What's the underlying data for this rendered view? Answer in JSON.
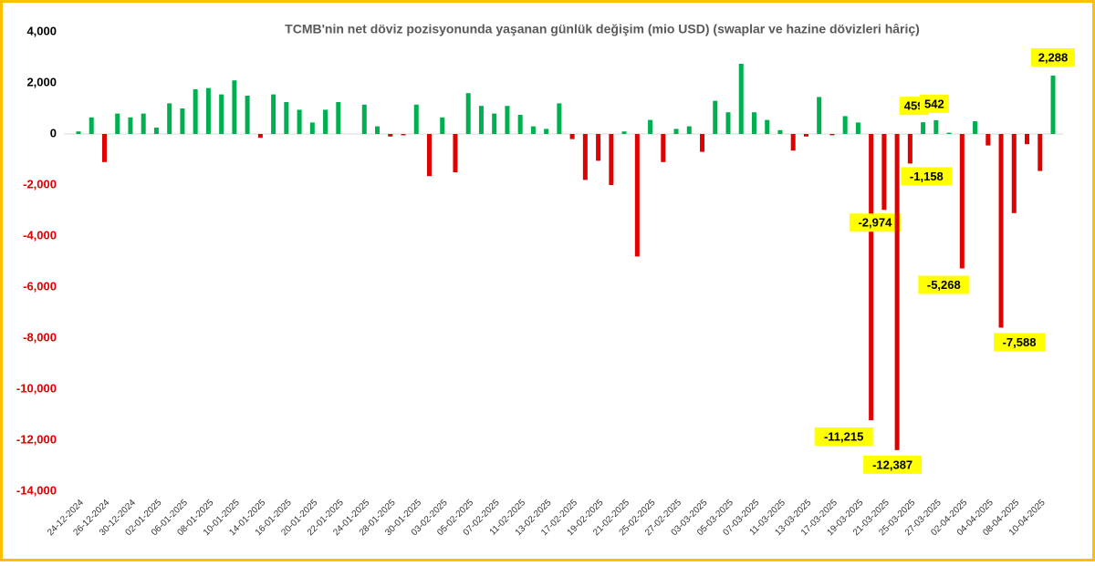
{
  "chart_data": {
    "type": "bar",
    "title": "TCMB'nin net döviz pozisyonunda yaşanan günlük değişim (mio USD) (swaplar ve hazine dövizleri hâriç)",
    "categories": [
      "24-12-2024",
      null,
      "26-12-2024",
      null,
      "30-12-2024",
      null,
      "02-01-2025",
      null,
      "06-01-2025",
      null,
      "08-01-2025",
      null,
      "10-01-2025",
      null,
      "14-01-2025",
      null,
      "16-01-2025",
      null,
      "20-01-2025",
      null,
      "22-01-2025",
      null,
      "24-01-2025",
      null,
      "28-01-2025",
      null,
      "30-01-2025",
      null,
      "03-02-2025",
      null,
      "05-02-2025",
      null,
      "07-02-2025",
      null,
      "11-02-2025",
      null,
      "13-02-2025",
      null,
      "17-02-2025",
      null,
      "19-02-2025",
      null,
      "21-02-2025",
      null,
      "25-02-2025",
      null,
      "27-02-2025",
      null,
      "03-03-2025",
      null,
      "05-03-2025",
      null,
      "07-03-2025",
      null,
      "11-03-2025",
      null,
      "13-03-2025",
      null,
      "17-03-2025",
      null,
      "19-03-2025",
      null,
      "21-03-2025",
      null,
      "25-03-2025",
      null,
      "27-03-2025",
      null,
      "02-04-2025",
      null,
      "04-04-2025",
      null,
      "08-04-2025",
      null,
      "10-04-2025",
      null
    ],
    "values": [
      100,
      650,
      -1100,
      800,
      650,
      800,
      250,
      1200,
      1000,
      1750,
      1800,
      1550,
      2100,
      1500,
      -150,
      1550,
      1250,
      950,
      450,
      950,
      1250,
      0,
      1150,
      300,
      -100,
      -50,
      1150,
      -1650,
      650,
      -1500,
      1600,
      1100,
      800,
      1100,
      750,
      300,
      200,
      1200,
      -200,
      -1800,
      -1050,
      -2000,
      100,
      -4800,
      550,
      -1100,
      200,
      300,
      -700,
      1300,
      850,
      2750,
      850,
      550,
      150,
      -650,
      -100,
      1450,
      -50,
      700,
      450,
      -11215,
      -2974,
      -12387,
      -1158,
      459,
      542,
      50,
      -5268,
      500,
      -450,
      -7588,
      -3100,
      -400,
      -1450,
      2288
    ],
    "value_labels": [
      null,
      null,
      null,
      null,
      null,
      null,
      null,
      null,
      null,
      null,
      null,
      null,
      null,
      null,
      null,
      null,
      null,
      null,
      null,
      null,
      null,
      null,
      null,
      null,
      null,
      null,
      null,
      null,
      null,
      null,
      null,
      null,
      null,
      null,
      null,
      null,
      null,
      null,
      null,
      null,
      null,
      null,
      null,
      null,
      null,
      null,
      null,
      null,
      null,
      null,
      null,
      null,
      null,
      null,
      null,
      null,
      null,
      null,
      null,
      null,
      null,
      "-11,215",
      "-2,974",
      "-12,387",
      "-1,158",
      "459",
      "542",
      null,
      "-5,268",
      null,
      null,
      "-7,588",
      null,
      null,
      null,
      "2,288"
    ],
    "positive_color": "#00b050",
    "negative_color": "#e00000",
    "ylim": [
      -14000,
      4000
    ],
    "yticks": [
      {
        "value": -14000,
        "label": "-14,000"
      },
      {
        "value": -12000,
        "label": "-12,000"
      },
      {
        "value": -10000,
        "label": "-10,000"
      },
      {
        "value": -8000,
        "label": "-8,000"
      },
      {
        "value": -6000,
        "label": "-6,000"
      },
      {
        "value": -4000,
        "label": "-4,000"
      },
      {
        "value": -2000,
        "label": "-2,000"
      },
      0,
      {
        "value": 2000,
        "label": "2,000"
      },
      {
        "value": 4000,
        "label": "4,000"
      }
    ],
    "grid": false
  }
}
